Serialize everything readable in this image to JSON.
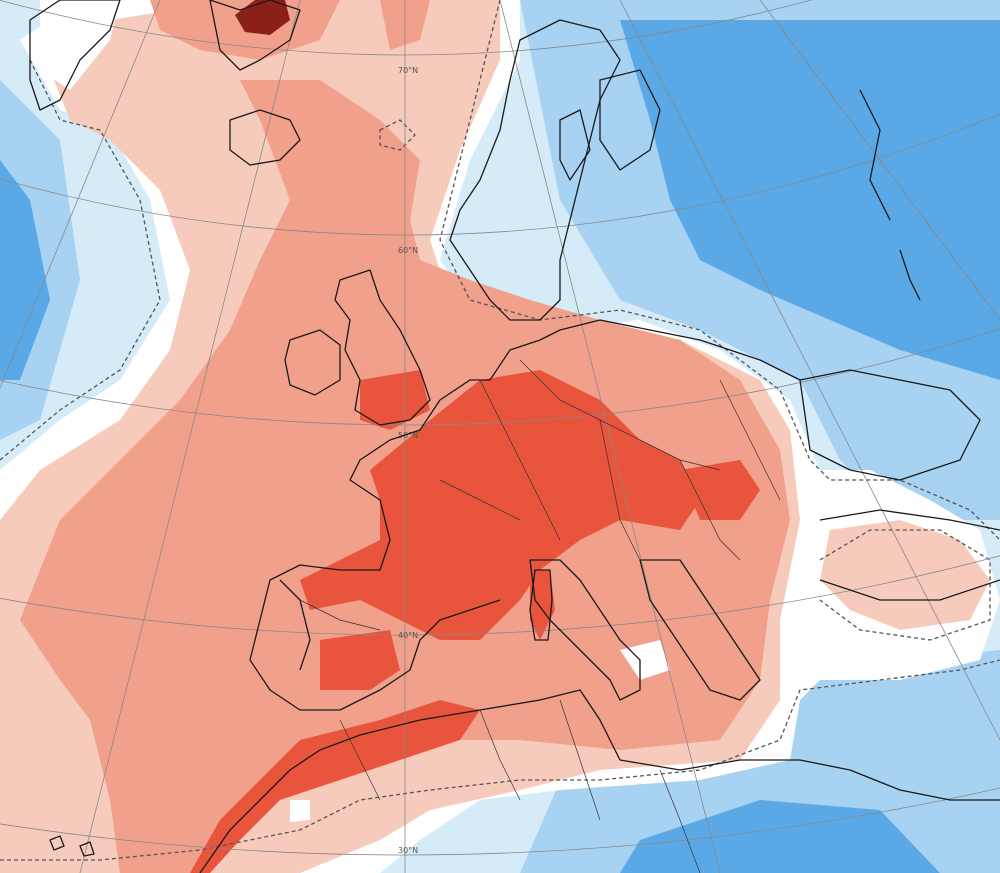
{
  "map": {
    "kind": "temperature-anomaly",
    "projection": "polar-stereographic",
    "region": "Europe and North Atlantic",
    "colors": {
      "warm_dark": "#8a2018",
      "warm_strong": "#e9543c",
      "warm_medium": "#f1a08c",
      "warm_light": "#f7cbbb",
      "neutral": "#ffffff",
      "cool_light": "#d5ebf8",
      "cool_medium": "#a8d2f1",
      "cool_strong": "#5aa9e6",
      "coastline": "#1a1a1a",
      "contour_dashed": "#555555",
      "graticule": "#888888"
    },
    "graticule_labels": {
      "lat_70": "70°N",
      "lat_60": "60°N",
      "lat_50": "50°N",
      "lat_40": "40°N",
      "lat_30": "30°N"
    }
  }
}
